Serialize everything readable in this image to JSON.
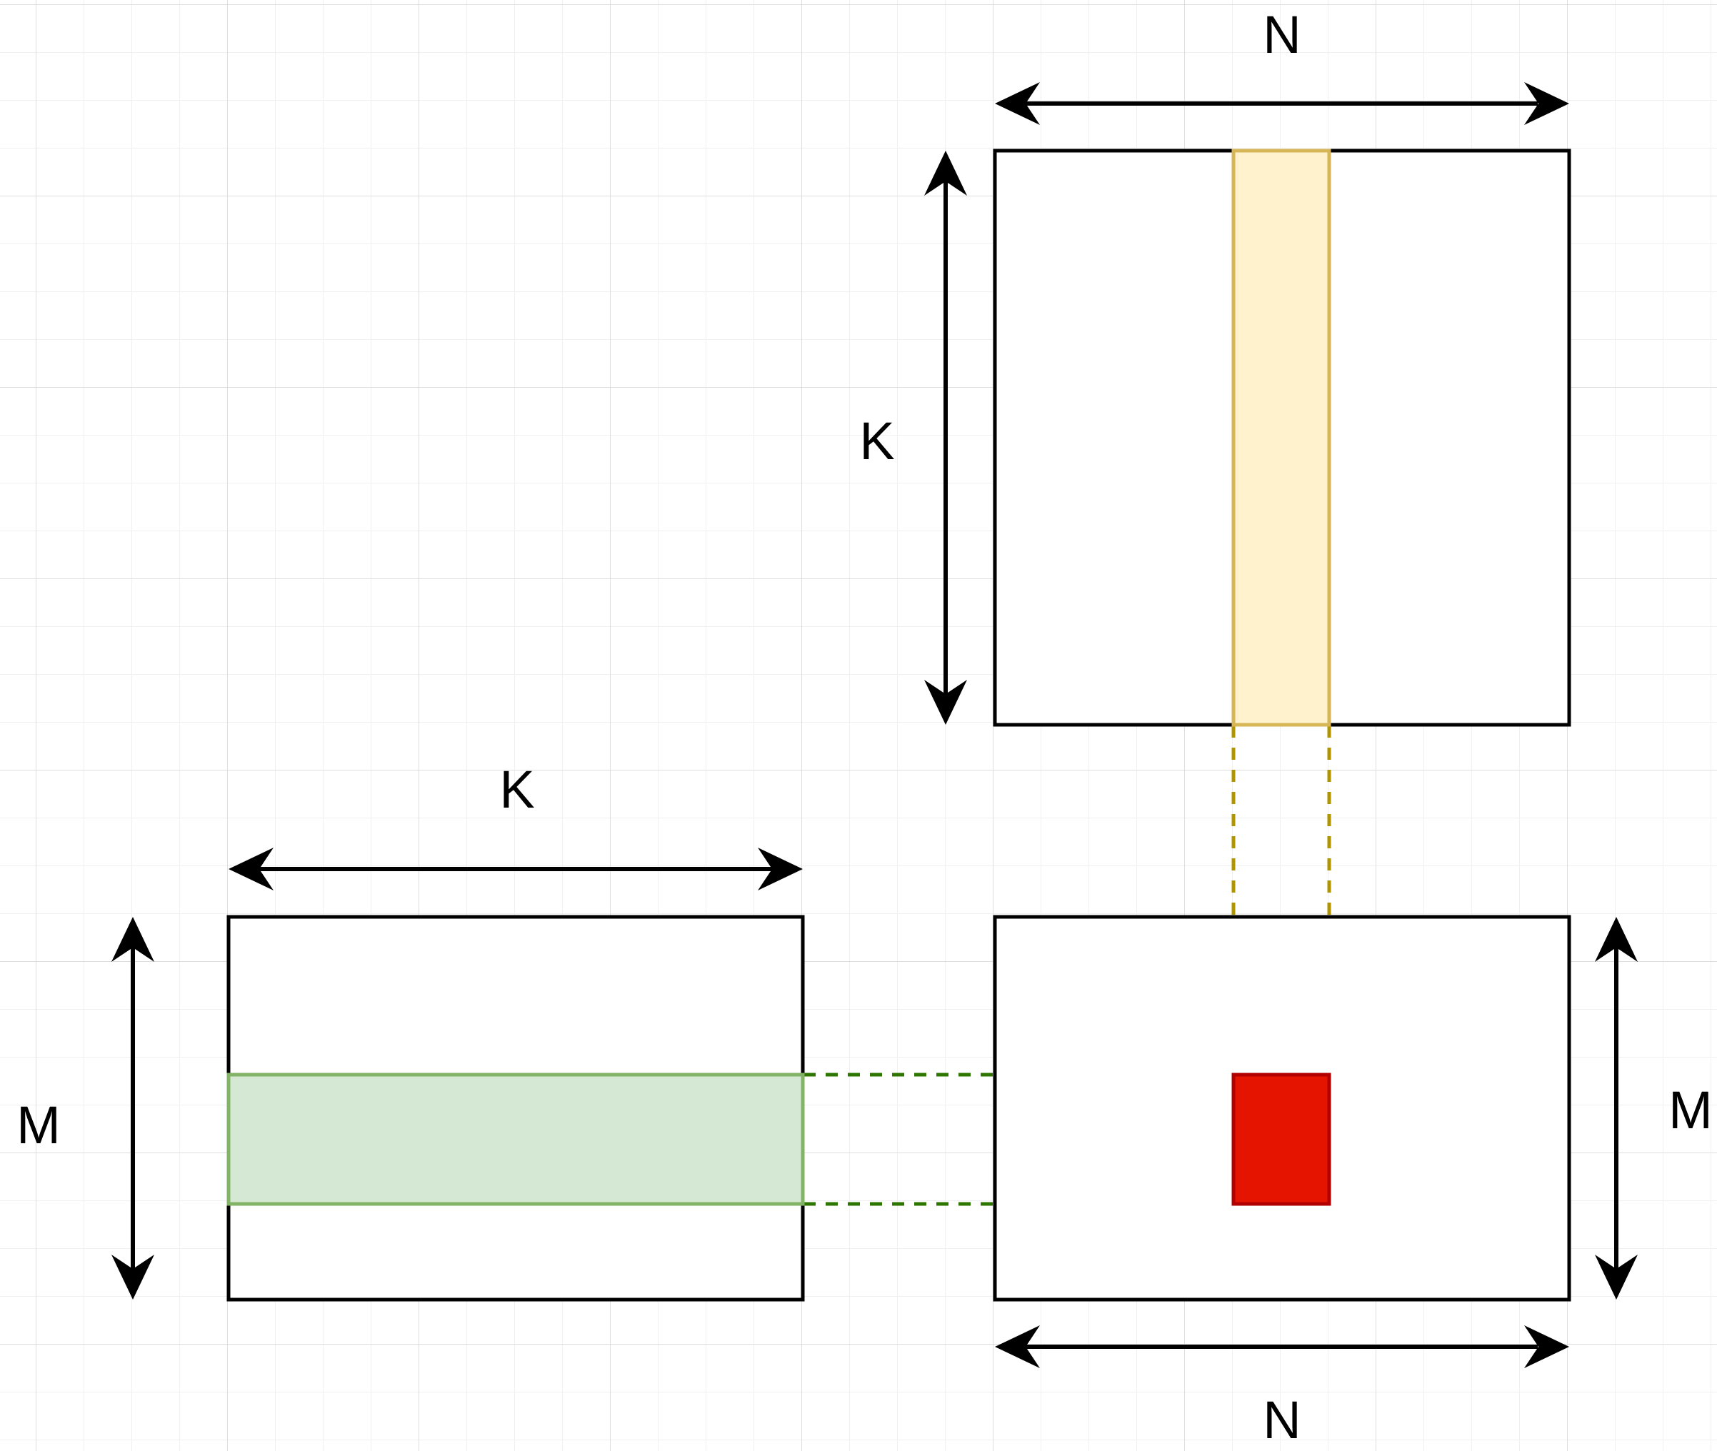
{
  "labels": {
    "top_width": "N",
    "top_height": "K",
    "left_width": "K",
    "left_height": "M",
    "right_height": "M",
    "bottom_width": "N"
  },
  "colors": {
    "background": "#ffffff",
    "grid_minor": "#f0f0f0",
    "grid_major": "#dedede",
    "outline": "#000000",
    "column_fill": "#fff2cc",
    "column_stroke": "#d6b656",
    "column_dash": "#b09500",
    "row_fill": "#d5e8d4",
    "row_stroke": "#82b366",
    "row_dash": "#2d7600",
    "cell_fill": "#e51400",
    "cell_stroke": "#b20000"
  }
}
